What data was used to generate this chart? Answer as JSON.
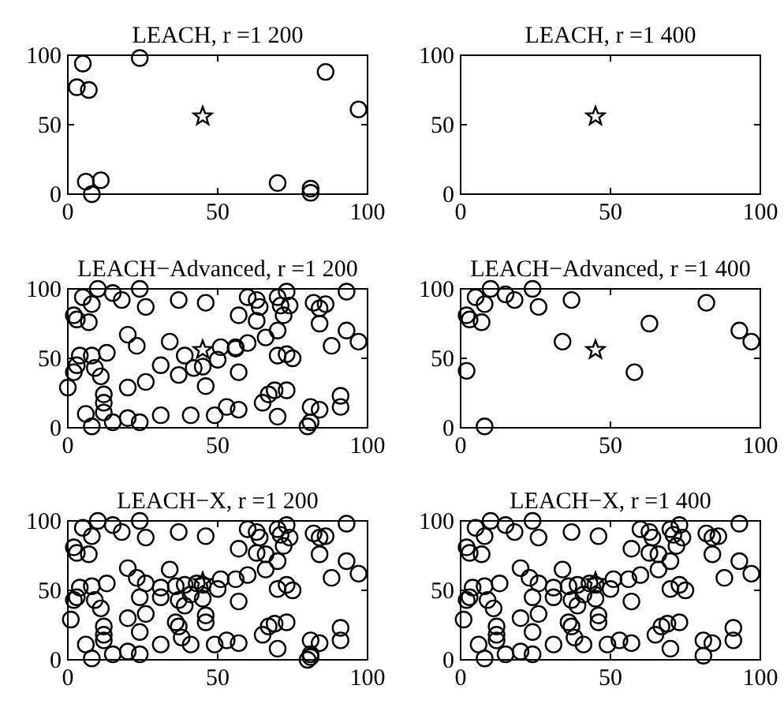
{
  "chart_data": [
    {
      "type": "scatter",
      "title": "LEACH, r =1 200",
      "xlim": [
        0,
        100
      ],
      "ylim": [
        0,
        100
      ],
      "xticks": [
        0,
        50,
        100
      ],
      "yticks": [
        0,
        50,
        100
      ],
      "series": [
        {
          "color": "#000000",
          "marker": "circle",
          "x": [
            5,
            3,
            7,
            24,
            86,
            97,
            6,
            11,
            8,
            70,
            81,
            81
          ],
          "values": [
            94,
            77,
            75,
            98,
            88,
            61,
            9,
            10,
            0,
            8,
            4,
            1
          ]
        },
        {
          "color": "#000000",
          "marker": "star",
          "x": [
            45
          ],
          "values": [
            56
          ]
        }
      ]
    },
    {
      "type": "scatter",
      "title": "LEACH, r =1 400",
      "xlim": [
        0,
        100
      ],
      "ylim": [
        0,
        100
      ],
      "xticks": [
        0,
        50,
        100
      ],
      "yticks": [
        0,
        50,
        100
      ],
      "series": [
        {
          "color": "#000000",
          "marker": "star",
          "x": [
            45
          ],
          "values": [
            56
          ]
        }
      ]
    },
    {
      "type": "scatter",
      "title": "LEACH−Advanced, r =1 200",
      "xlim": [
        0,
        100
      ],
      "ylim": [
        0,
        100
      ],
      "xticks": [
        0,
        50,
        100
      ],
      "yticks": [
        0,
        50,
        100
      ],
      "series": [
        {
          "color": "#000000",
          "marker": "circle",
          "x": [
            10,
            5,
            8,
            15,
            18,
            24,
            26,
            37,
            46,
            60,
            63,
            64,
            57,
            63,
            66,
            70,
            71,
            73,
            74,
            72,
            70,
            82,
            84,
            86,
            84,
            93,
            93,
            97,
            88,
            2,
            3,
            7,
            0,
            2,
            3,
            4,
            8,
            13,
            9,
            11,
            12,
            12,
            12,
            6,
            8,
            15,
            20,
            24,
            20,
            20,
            23,
            26,
            31,
            34,
            39,
            37,
            42,
            45,
            46,
            50,
            51,
            56,
            56,
            60,
            57,
            31,
            41,
            49,
            53,
            57,
            70,
            73,
            75,
            65,
            67,
            69,
            70,
            73,
            81,
            81,
            84,
            91,
            91,
            80
          ],
          "values": [
            100,
            94,
            89,
            97,
            92,
            100,
            87,
            92,
            90,
            94,
            92,
            87,
            81,
            77,
            65,
            94,
            88,
            98,
            88,
            81,
            70,
            90,
            86,
            89,
            75,
            98,
            70,
            62,
            59,
            81,
            78,
            76,
            29,
            40,
            45,
            52,
            52,
            54,
            43,
            37,
            24,
            18,
            11,
            10,
            1,
            4,
            7,
            4,
            29,
            67,
            59,
            33,
            45,
            62,
            52,
            38,
            43,
            44,
            30,
            49,
            58,
            58,
            57,
            61,
            40,
            9,
            9,
            9,
            15,
            13,
            52,
            53,
            50,
            18,
            24,
            27,
            8,
            27,
            4,
            15,
            13,
            23,
            15,
            1
          ]
        },
        {
          "color": "#000000",
          "marker": "star",
          "x": [
            45
          ],
          "values": [
            56
          ]
        }
      ]
    },
    {
      "type": "scatter",
      "title": "LEACH−Advanced, r =1 400",
      "xlim": [
        0,
        100
      ],
      "ylim": [
        0,
        100
      ],
      "xticks": [
        0,
        50,
        100
      ],
      "yticks": [
        0,
        50,
        100
      ],
      "series": [
        {
          "color": "#000000",
          "marker": "circle",
          "x": [
            10,
            5,
            8,
            15,
            18,
            24,
            26,
            37,
            2,
            3,
            7,
            2,
            8,
            34,
            58,
            63,
            82,
            93,
            97
          ],
          "values": [
            100,
            94,
            89,
            96,
            92,
            100,
            87,
            92,
            81,
            78,
            76,
            41,
            1,
            62,
            40,
            75,
            90,
            70,
            62
          ]
        },
        {
          "color": "#000000",
          "marker": "star",
          "x": [
            45
          ],
          "values": [
            56
          ]
        }
      ]
    },
    {
      "type": "scatter",
      "title": "LEACH−X, r =1 200",
      "xlim": [
        0,
        100
      ],
      "ylim": [
        0,
        100
      ],
      "xticks": [
        0,
        50,
        100
      ],
      "yticks": [
        0,
        50,
        100
      ],
      "series": [
        {
          "color": "#000000",
          "marker": "circle",
          "x": [
            10,
            5,
            8,
            15,
            18,
            24,
            26,
            37,
            46,
            60,
            63,
            64,
            66,
            57,
            70,
            71,
            73,
            74,
            72,
            70,
            63,
            66,
            82,
            84,
            86,
            84,
            93,
            93,
            97,
            88,
            2,
            3,
            7,
            1,
            2,
            3,
            4,
            8,
            13,
            9,
            11,
            12,
            12,
            12,
            6,
            8,
            15,
            20,
            24,
            20,
            24,
            26,
            20,
            23,
            26,
            24,
            31,
            34,
            36,
            31,
            37,
            39,
            43,
            41,
            45,
            45,
            50,
            39,
            36,
            37,
            38,
            41,
            31,
            46,
            46,
            49,
            53,
            57,
            57,
            51,
            56,
            60,
            70,
            73,
            75,
            65,
            67,
            69,
            70,
            73,
            81,
            81,
            84,
            91,
            91,
            80,
            81
          ],
          "values": [
            100,
            95,
            89,
            97,
            92,
            100,
            88,
            92,
            89,
            94,
            92,
            88,
            76,
            80,
            94,
            90,
            97,
            88,
            82,
            71,
            77,
            65,
            91,
            88,
            89,
            76,
            98,
            71,
            62,
            59,
            81,
            77,
            76,
            29,
            43,
            45,
            52,
            53,
            55,
            43,
            37,
            24,
            18,
            14,
            11,
            1,
            4,
            6,
            4,
            30,
            20,
            33,
            66,
            59,
            55,
            45,
            52,
            65,
            53,
            45,
            43,
            54,
            55,
            47,
            44,
            54,
            51,
            39,
            27,
            24,
            16,
            11,
            11,
            32,
            27,
            11,
            14,
            12,
            42,
            58,
            58,
            61,
            51,
            54,
            50,
            18,
            24,
            26,
            8,
            27,
            2,
            14,
            12,
            23,
            14,
            0,
            4
          ]
        },
        {
          "color": "#000000",
          "marker": "star",
          "x": [
            45
          ],
          "values": [
            56
          ]
        }
      ]
    },
    {
      "type": "scatter",
      "title": "LEACH−X, r =1 400",
      "xlim": [
        0,
        100
      ],
      "ylim": [
        0,
        100
      ],
      "xticks": [
        0,
        50,
        100
      ],
      "yticks": [
        0,
        50,
        100
      ],
      "series": [
        {
          "color": "#000000",
          "marker": "circle",
          "x": [
            10,
            5,
            8,
            15,
            18,
            24,
            26,
            37,
            46,
            60,
            63,
            64,
            66,
            57,
            70,
            71,
            73,
            74,
            72,
            70,
            63,
            66,
            82,
            84,
            86,
            84,
            93,
            93,
            97,
            88,
            2,
            3,
            7,
            1,
            2,
            3,
            4,
            8,
            13,
            9,
            11,
            12,
            12,
            12,
            6,
            8,
            15,
            20,
            24,
            20,
            24,
            26,
            20,
            23,
            26,
            24,
            31,
            34,
            36,
            31,
            37,
            39,
            43,
            41,
            45,
            45,
            50,
            39,
            36,
            37,
            38,
            41,
            31,
            46,
            46,
            49,
            53,
            57,
            57,
            51,
            56,
            60,
            70,
            73,
            75,
            65,
            67,
            69,
            70,
            73,
            81,
            81,
            84,
            91,
            91
          ],
          "values": [
            100,
            95,
            89,
            97,
            92,
            100,
            88,
            92,
            89,
            94,
            92,
            88,
            76,
            80,
            94,
            90,
            97,
            88,
            82,
            71,
            77,
            65,
            91,
            88,
            89,
            76,
            98,
            71,
            62,
            59,
            81,
            77,
            76,
            29,
            43,
            45,
            52,
            53,
            55,
            43,
            37,
            24,
            18,
            14,
            11,
            1,
            4,
            6,
            4,
            30,
            20,
            33,
            66,
            59,
            55,
            45,
            52,
            65,
            53,
            45,
            43,
            54,
            55,
            47,
            44,
            54,
            51,
            39,
            27,
            24,
            16,
            11,
            11,
            32,
            27,
            11,
            14,
            12,
            42,
            58,
            58,
            61,
            51,
            54,
            50,
            18,
            24,
            26,
            8,
            27,
            3,
            14,
            12,
            23,
            14
          ]
        },
        {
          "color": "#000000",
          "marker": "star",
          "x": [
            45
          ],
          "values": [
            56
          ]
        }
      ]
    }
  ]
}
